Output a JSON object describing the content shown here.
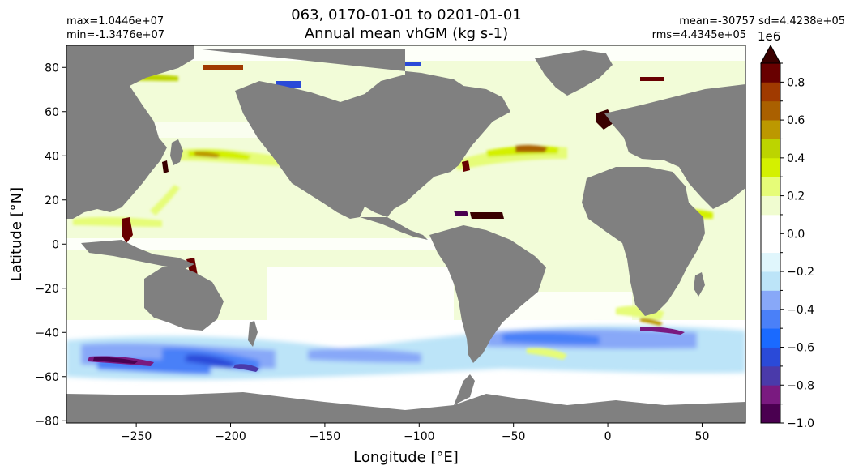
{
  "chart_data": {
    "type": "heatmap",
    "title_line1": "063, 0170-01-01 to 0201-01-01",
    "title_line2": "Annual mean vhGM (kg s-1)",
    "stats": {
      "max": "max=1.0446e+07",
      "min": "min=-1.3476e+07",
      "mean_sd": "mean=-30757 sd=4.4238e+05",
      "rms": "rms=4.4345e+05"
    },
    "xlabel": "Longitude [°E]",
    "ylabel": "Latitude [°N]",
    "xlim": [
      -287,
      73
    ],
    "ylim": [
      -81,
      90
    ],
    "xticks": [
      -250,
      -200,
      -150,
      -100,
      -50,
      0,
      50
    ],
    "xtick_labels": [
      "−250",
      "−200",
      "−150",
      "−100",
      "−50",
      "0",
      "50"
    ],
    "yticks": [
      -80,
      -60,
      -40,
      -20,
      0,
      20,
      40,
      60,
      80
    ],
    "ytick_labels": [
      "−80",
      "−60",
      "−40",
      "−20",
      "0",
      "20",
      "40",
      "60",
      "80"
    ],
    "colorbar": {
      "exponent_label": "1e6",
      "vmin": -1.0,
      "vmax": 0.9,
      "extend": "max",
      "ticks": [
        -1.0,
        -0.8,
        -0.6,
        -0.4,
        -0.2,
        0.0,
        0.2,
        0.4,
        0.6,
        0.8
      ],
      "tick_labels": [
        "−1.0",
        "−0.8",
        "−0.6",
        "−0.4",
        "−0.2",
        "0.0",
        "0.2",
        "0.4",
        "0.6",
        "0.8"
      ],
      "levels": [
        -1.0,
        -0.9,
        -0.8,
        -0.7,
        -0.6,
        -0.5,
        -0.4,
        -0.3,
        -0.2,
        -0.1,
        0.0,
        0.1,
        0.2,
        0.3,
        0.4,
        0.5,
        0.6,
        0.7,
        0.8,
        0.9
      ],
      "colors": [
        "#4a0050",
        "#7a1a80",
        "#4a3aaa",
        "#2a4ad8",
        "#1a6aff",
        "#4a80f8",
        "#88a8f8",
        "#bce4f8",
        "#e0f6fc",
        "#ffffff",
        "#ffffff",
        "#f0fcd0",
        "#e6fc78",
        "#d4f000",
        "#bcd400",
        "#bc9800",
        "#aa6000",
        "#a03a00",
        "#680000"
      ],
      "extend_color": "#3a0000"
    },
    "land_color": "#808080",
    "ocean_base_color": "#f2fcd8"
  }
}
